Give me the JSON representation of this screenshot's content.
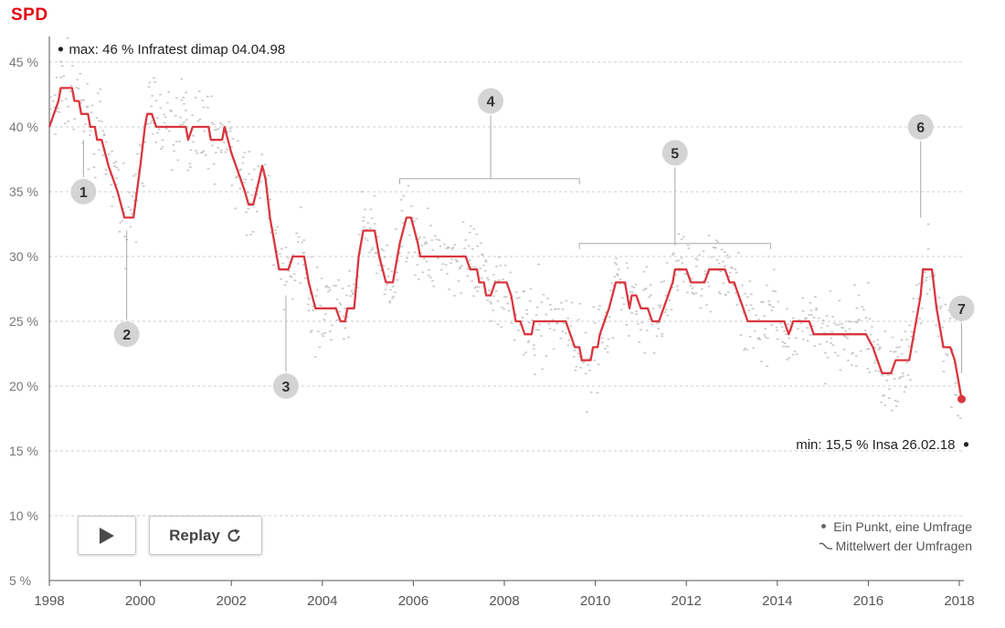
{
  "party": "SPD",
  "controls": {
    "play_label": "",
    "replay_label": "Replay"
  },
  "legend": {
    "points_label": "Ein Punkt, eine Umfrage",
    "line_label": "Mittelwert der Umfragen"
  },
  "colors": {
    "line": "#d9363e",
    "grid": "#cccccc",
    "dots": "#b4b4b4",
    "badge": "#d4d4d4"
  },
  "chart_data": {
    "type": "line",
    "title": "SPD",
    "xlabel": "",
    "ylabel": "",
    "xlim": [
      1998,
      2018.1
    ],
    "ylim": [
      5,
      47
    ],
    "x_ticks": [
      1998,
      2000,
      2002,
      2004,
      2006,
      2008,
      2010,
      2012,
      2014,
      2016,
      2018
    ],
    "y_ticks": [
      {
        "value": 5,
        "label": "5 %"
      },
      {
        "value": 10,
        "label": "10 %"
      },
      {
        "value": 15,
        "label": "15 %"
      },
      {
        "value": 20,
        "label": "20 %"
      },
      {
        "value": 25,
        "label": "25 %"
      },
      {
        "value": 30,
        "label": "30 %"
      },
      {
        "value": 35,
        "label": "35 %"
      },
      {
        "value": 40,
        "label": "40 %"
      },
      {
        "value": 45,
        "label": "45 %"
      }
    ],
    "series": [
      {
        "name": "Mittelwert der Umfragen",
        "points": [
          [
            1998.0,
            40
          ],
          [
            1998.2,
            42
          ],
          [
            1998.25,
            43
          ],
          [
            1998.5,
            43
          ],
          [
            1998.55,
            42
          ],
          [
            1998.65,
            42
          ],
          [
            1998.7,
            41
          ],
          [
            1998.85,
            41
          ],
          [
            1998.9,
            40
          ],
          [
            1999.0,
            40
          ],
          [
            1999.05,
            39
          ],
          [
            1999.15,
            39
          ],
          [
            1999.3,
            37
          ],
          [
            1999.5,
            35
          ],
          [
            1999.65,
            33
          ],
          [
            1999.85,
            33
          ],
          [
            2000.0,
            37
          ],
          [
            2000.1,
            40
          ],
          [
            2000.15,
            41
          ],
          [
            2000.25,
            41
          ],
          [
            2000.35,
            40
          ],
          [
            2001.0,
            40
          ],
          [
            2001.05,
            39
          ],
          [
            2001.15,
            40
          ],
          [
            2001.5,
            40
          ],
          [
            2001.55,
            39
          ],
          [
            2001.8,
            39
          ],
          [
            2001.85,
            40
          ],
          [
            2002.0,
            38
          ],
          [
            2002.2,
            36
          ],
          [
            2002.3,
            35
          ],
          [
            2002.38,
            34
          ],
          [
            2002.48,
            34
          ],
          [
            2002.55,
            35
          ],
          [
            2002.68,
            37
          ],
          [
            2002.75,
            36
          ],
          [
            2002.85,
            33
          ],
          [
            2003.0,
            30
          ],
          [
            2003.05,
            29
          ],
          [
            2003.25,
            29
          ],
          [
            2003.35,
            30
          ],
          [
            2003.6,
            30
          ],
          [
            2003.7,
            28
          ],
          [
            2003.85,
            26
          ],
          [
            2004.3,
            26
          ],
          [
            2004.4,
            25
          ],
          [
            2004.5,
            25
          ],
          [
            2004.55,
            26
          ],
          [
            2004.7,
            26
          ],
          [
            2004.8,
            30
          ],
          [
            2004.9,
            32
          ],
          [
            2005.15,
            32
          ],
          [
            2005.25,
            30
          ],
          [
            2005.4,
            28
          ],
          [
            2005.55,
            28
          ],
          [
            2005.65,
            30
          ],
          [
            2005.7,
            31
          ],
          [
            2005.85,
            33
          ],
          [
            2005.95,
            33
          ],
          [
            2006.1,
            31
          ],
          [
            2006.15,
            30
          ],
          [
            2007.15,
            30
          ],
          [
            2007.25,
            29
          ],
          [
            2007.4,
            29
          ],
          [
            2007.45,
            28
          ],
          [
            2007.55,
            28
          ],
          [
            2007.6,
            27
          ],
          [
            2007.7,
            27
          ],
          [
            2007.8,
            28
          ],
          [
            2008.05,
            28
          ],
          [
            2008.15,
            27
          ],
          [
            2008.25,
            25
          ],
          [
            2008.35,
            25
          ],
          [
            2008.45,
            24
          ],
          [
            2008.6,
            24
          ],
          [
            2008.65,
            25
          ],
          [
            2009.35,
            25
          ],
          [
            2009.55,
            23
          ],
          [
            2009.65,
            23
          ],
          [
            2009.7,
            22
          ],
          [
            2009.9,
            22
          ],
          [
            2009.95,
            23
          ],
          [
            2010.05,
            23
          ],
          [
            2010.1,
            24
          ],
          [
            2010.3,
            26
          ],
          [
            2010.45,
            28
          ],
          [
            2010.65,
            28
          ],
          [
            2010.75,
            26
          ],
          [
            2010.8,
            27
          ],
          [
            2010.9,
            27
          ],
          [
            2011.0,
            26
          ],
          [
            2011.15,
            26
          ],
          [
            2011.25,
            25
          ],
          [
            2011.4,
            25
          ],
          [
            2011.5,
            26
          ],
          [
            2011.6,
            27
          ],
          [
            2011.7,
            28
          ],
          [
            2011.75,
            29
          ],
          [
            2012.0,
            29
          ],
          [
            2012.1,
            28
          ],
          [
            2012.4,
            28
          ],
          [
            2012.5,
            29
          ],
          [
            2012.85,
            29
          ],
          [
            2012.95,
            28
          ],
          [
            2013.05,
            28
          ],
          [
            2013.15,
            27
          ],
          [
            2013.25,
            26
          ],
          [
            2013.35,
            25
          ],
          [
            2014.15,
            25
          ],
          [
            2014.25,
            24
          ],
          [
            2014.35,
            25
          ],
          [
            2014.7,
            25
          ],
          [
            2014.8,
            24
          ],
          [
            2015.95,
            24
          ],
          [
            2016.1,
            23
          ],
          [
            2016.2,
            22
          ],
          [
            2016.3,
            21
          ],
          [
            2016.5,
            21
          ],
          [
            2016.6,
            22
          ],
          [
            2016.9,
            22
          ],
          [
            2017.0,
            24
          ],
          [
            2017.15,
            27
          ],
          [
            2017.2,
            29
          ],
          [
            2017.4,
            29
          ],
          [
            2017.5,
            26
          ],
          [
            2017.65,
            23
          ],
          [
            2017.8,
            23
          ],
          [
            2017.9,
            22
          ],
          [
            2018.0,
            20
          ],
          [
            2018.05,
            19
          ]
        ],
        "endpoint": [
          2018.05,
          19
        ]
      }
    ],
    "scatter": "Ein Punkt, eine Umfrage",
    "annotations": {
      "max": {
        "text": "max: 46 % Infratest dimap 04.04.98",
        "x": 1998.25,
        "y": 46
      },
      "min": {
        "text": "min: 15,5 % Insa 26.02.18",
        "x": 2018.15,
        "y": 15.5
      },
      "markers": [
        {
          "label": "1",
          "x": 1998.75,
          "y": 35,
          "from": 39
        },
        {
          "label": "2",
          "x": 1999.7,
          "y": 24,
          "from": 32
        },
        {
          "label": "3",
          "x": 2003.2,
          "y": 20,
          "from": 27
        },
        {
          "label": "4",
          "x": 2007.7,
          "y": 42,
          "range": [
            2005.7,
            2009.65
          ],
          "rangeY": 36
        },
        {
          "label": "5",
          "x": 2011.75,
          "y": 38,
          "range": [
            2009.65,
            2013.85
          ],
          "rangeY": 31
        },
        {
          "label": "6",
          "x": 2017.15,
          "y": 40,
          "from": 33
        },
        {
          "label": "7",
          "x": 2018.05,
          "y": 26,
          "from": 21
        }
      ]
    }
  }
}
